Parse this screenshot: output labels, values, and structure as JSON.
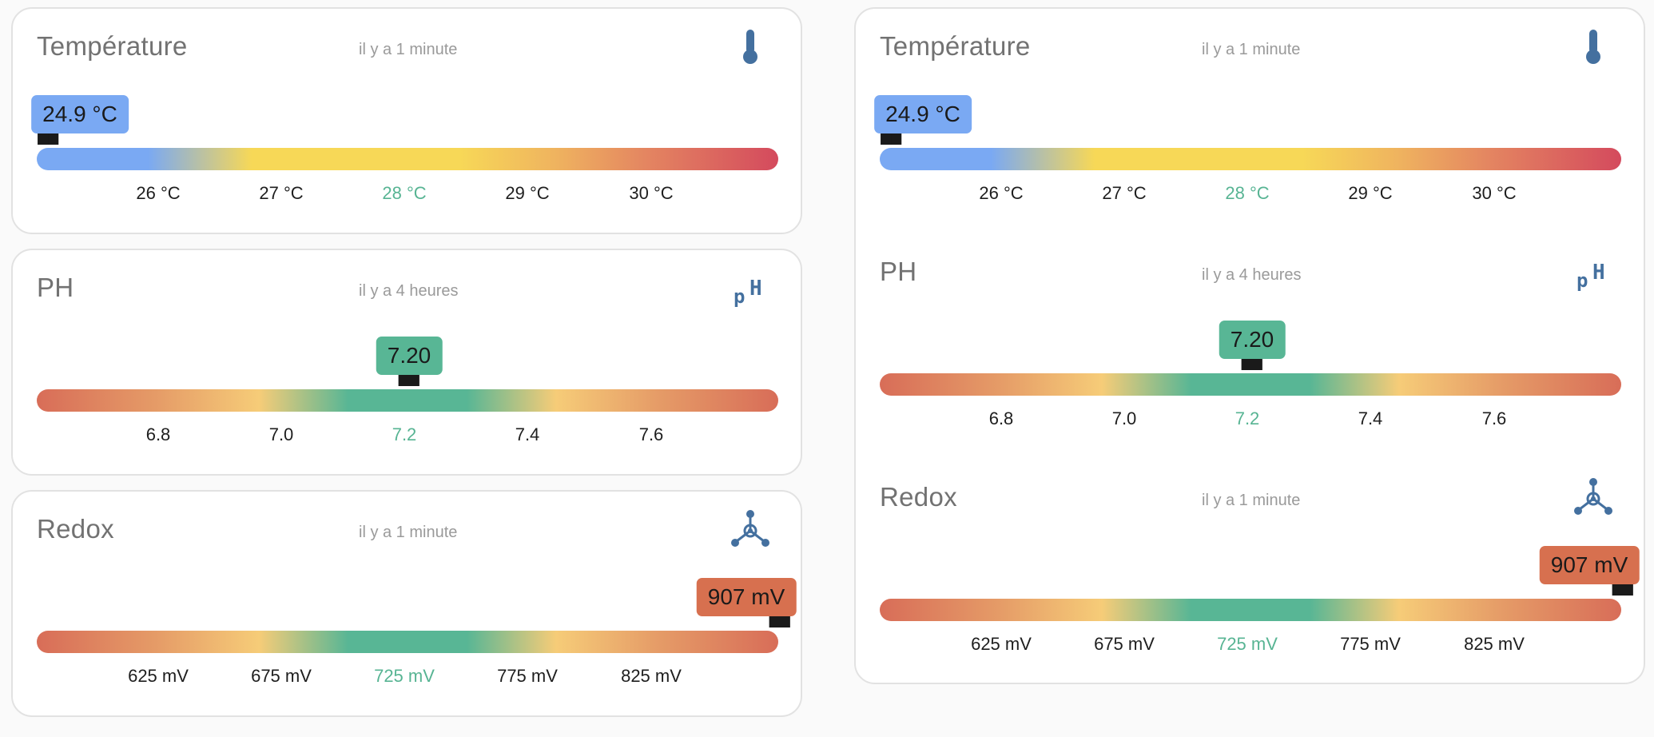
{
  "colors": {
    "accent_blue": "#7aa9f3",
    "accent_green": "#58b695",
    "accent_red": "#d7704f",
    "icon": "#44709f"
  },
  "panels": [
    {
      "temperature": {
        "title": "Température",
        "updated": "il y a 1 minute",
        "icon": "thermometer-icon",
        "value": "24.9 °C",
        "ticks": [
          "26 °C",
          "27 °C",
          "28 °C",
          "29 °C",
          "30 °C"
        ]
      },
      "ph": {
        "title": "PH",
        "updated": "il y a 4 heures",
        "icon": "ph-icon",
        "value": "7.20",
        "ticks": [
          "6.8",
          "7.0",
          "7.2",
          "7.4",
          "7.6"
        ]
      },
      "redox": {
        "title": "Redox",
        "updated": "il y a 1 minute",
        "icon": "molecule-icon",
        "value": "907 mV",
        "ticks": [
          "625 mV",
          "675 mV",
          "725 mV",
          "775 mV",
          "825 mV"
        ]
      }
    },
    {
      "temperature": {
        "title": "Température",
        "updated": "il y a 1 minute",
        "icon": "thermometer-icon",
        "value": "24.9 °C",
        "ticks": [
          "26 °C",
          "27 °C",
          "28 °C",
          "29 °C",
          "30 °C"
        ]
      },
      "ph": {
        "title": "PH",
        "updated": "il y a 4 heures",
        "icon": "ph-icon",
        "value": "7.20",
        "ticks": [
          "6.8",
          "7.0",
          "7.2",
          "7.4",
          "7.6"
        ]
      },
      "redox": {
        "title": "Redox",
        "updated": "il y a 1 minute",
        "icon": "molecule-icon",
        "value": "907 mV",
        "ticks": [
          "625 mV",
          "675 mV",
          "725 mV",
          "775 mV",
          "825 mV"
        ]
      }
    }
  ]
}
